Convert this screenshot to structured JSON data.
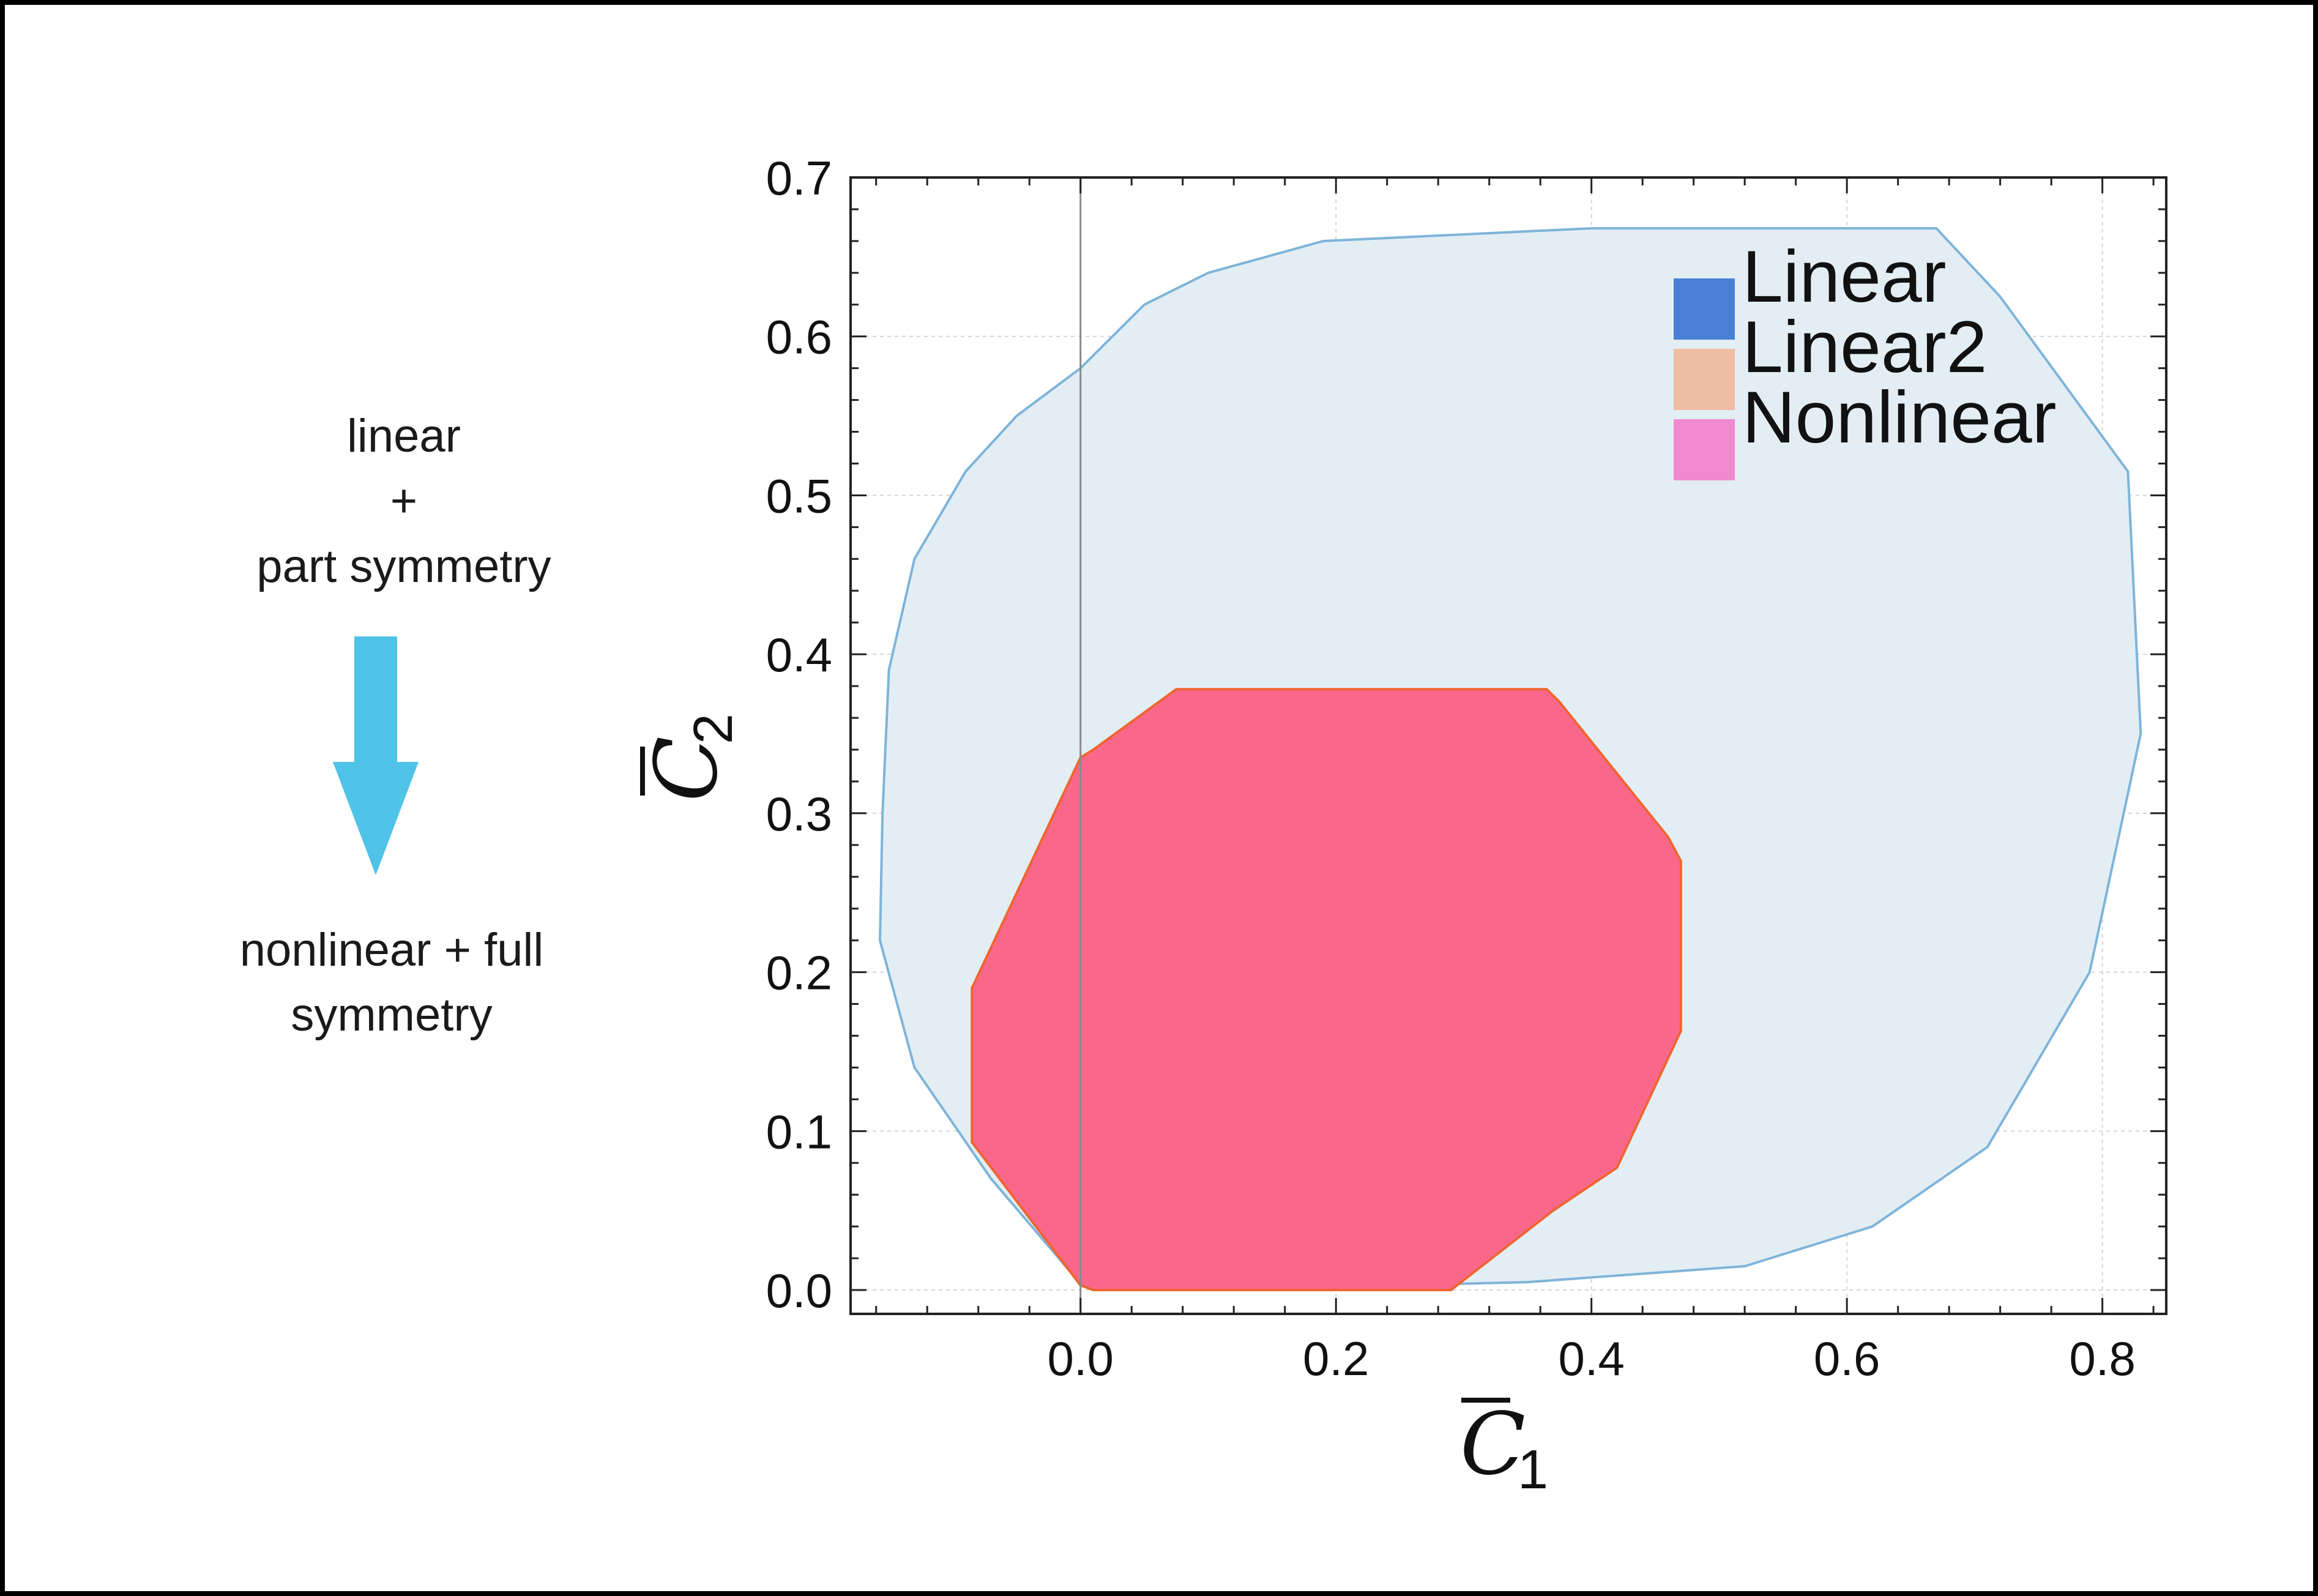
{
  "annotation": {
    "top_line1": "linear",
    "top_plus": "+",
    "top_line2": "part symmetry",
    "bottom_line1": "nonlinear",
    "bottom_plus": "+",
    "bottom_line2": "full symmetry",
    "arrow_color": "#4fc3e8"
  },
  "chart_data": {
    "type": "area",
    "xlim": [
      -0.18,
      0.85
    ],
    "ylim": [
      -0.015,
      0.7
    ],
    "x_ticks": [
      0.0,
      0.2,
      0.4,
      0.6,
      0.8
    ],
    "x_tick_labels": [
      "0.0",
      "0.2",
      "0.4",
      "0.6",
      "0.8"
    ],
    "y_ticks": [
      0.0,
      0.1,
      0.2,
      0.3,
      0.4,
      0.5,
      0.6,
      0.7
    ],
    "y_tick_labels": [
      "0.0",
      "0.1",
      "0.2",
      "0.3",
      "0.4",
      "0.5",
      "0.6",
      "0.7"
    ],
    "xlabel": "C",
    "xlabel_sub": "1",
    "ylabel": "C",
    "ylabel_sub": "2",
    "grid": true,
    "legend_position": "top-right",
    "legend": [
      {
        "label": "Linear",
        "color": "#4a7fd6"
      },
      {
        "label": "Linear2",
        "color": "#efbca4"
      },
      {
        "label": "Nonlinear",
        "color": "#f08ad0"
      }
    ],
    "series": [
      {
        "name": "Linear",
        "fill": "#e3eef4",
        "stroke": "#7fb4d9",
        "points": [
          [
            0.0,
            0.58
          ],
          [
            0.05,
            0.62
          ],
          [
            0.1,
            0.64
          ],
          [
            0.19,
            0.66
          ],
          [
            0.4,
            0.668
          ],
          [
            0.67,
            0.668
          ],
          [
            0.72,
            0.625
          ],
          [
            0.82,
            0.515
          ],
          [
            0.83,
            0.35
          ],
          [
            0.79,
            0.2
          ],
          [
            0.71,
            0.09
          ],
          [
            0.62,
            0.04
          ],
          [
            0.52,
            0.015
          ],
          [
            0.35,
            0.005
          ],
          [
            0.25,
            0.003
          ],
          [
            0.1,
            0.001
          ],
          [
            0.0,
            0.004
          ],
          [
            -0.07,
            0.07
          ],
          [
            -0.13,
            0.14
          ],
          [
            -0.157,
            0.22
          ],
          [
            -0.155,
            0.3
          ],
          [
            -0.15,
            0.39
          ],
          [
            -0.13,
            0.46
          ],
          [
            -0.09,
            0.515
          ],
          [
            -0.05,
            0.55
          ]
        ]
      },
      {
        "name": "Nonlinear",
        "fill": "#f9688a",
        "stroke": "#f06530",
        "points": [
          [
            0.075,
            0.378
          ],
          [
            0.365,
            0.378
          ],
          [
            0.375,
            0.37
          ],
          [
            0.46,
            0.285
          ],
          [
            0.47,
            0.27
          ],
          [
            0.47,
            0.163
          ],
          [
            0.42,
            0.077
          ],
          [
            0.37,
            0.05
          ],
          [
            0.29,
            0.0
          ],
          [
            0.01,
            0.0
          ],
          [
            0.0,
            0.003
          ],
          [
            -0.085,
            0.093
          ],
          [
            -0.085,
            0.19
          ],
          [
            -0.0,
            0.335
          ],
          [
            0.01,
            0.34
          ]
        ]
      }
    ]
  }
}
